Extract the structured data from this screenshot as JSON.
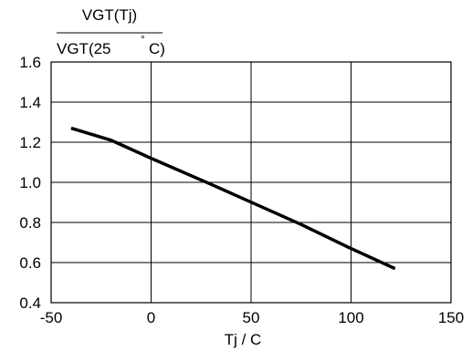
{
  "chart_data": {
    "type": "line",
    "ylabel": {
      "numerator": "VGT(Tj)",
      "denominator_prefix": "VGT(25 ",
      "degree_symbol": "°",
      "denominator_suffix": "C)"
    },
    "xlabel": "Tj / C",
    "xlim": [
      -50,
      150
    ],
    "ylim": [
      0.4,
      1.6
    ],
    "x_ticks": [
      -50,
      0,
      50,
      100,
      150
    ],
    "x_tick_labels": [
      "-50",
      "0",
      "50",
      "100",
      "150"
    ],
    "y_ticks": [
      0.4,
      0.6,
      0.8,
      1.0,
      1.2,
      1.4,
      1.6
    ],
    "y_tick_labels": [
      "0.4",
      "0.6",
      "0.8",
      "1.0",
      "1.2",
      "1.4",
      "1.6"
    ],
    "grid": true,
    "series": [
      {
        "color": "#000000",
        "x": [
          -40,
          -20,
          0,
          30,
          75,
          100,
          122
        ],
        "y": [
          1.27,
          1.21,
          1.12,
          0.99,
          0.79,
          0.67,
          0.57
        ]
      }
    ]
  }
}
